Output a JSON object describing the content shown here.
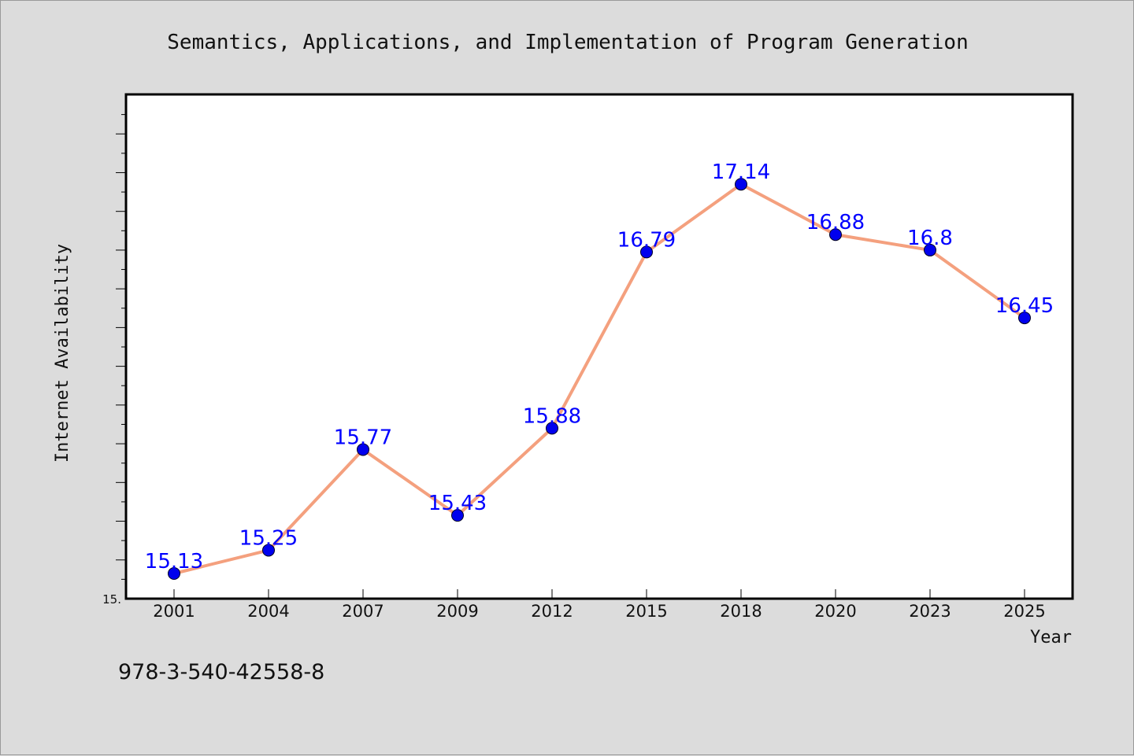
{
  "chart_data": {
    "type": "line",
    "title": "Semantics, Applications, and Implementation of Program Generation",
    "xlabel": "Year",
    "ylabel": "Internet Availability",
    "categories": [
      "2001",
      "2004",
      "2007",
      "2009",
      "2012",
      "2015",
      "2018",
      "2020",
      "2023",
      "2025"
    ],
    "series": [
      {
        "values": [
          15.13,
          15.25,
          15.77,
          15.43,
          15.88,
          16.79,
          17.14,
          16.88,
          16.8,
          16.45
        ],
        "labels": [
          "15.13",
          "15.25",
          "15.77",
          "15.43",
          "15.88",
          "16.79",
          "17.14",
          "16.88",
          "16.8",
          "16.45"
        ]
      }
    ],
    "ylim": [
      15.0,
      17.6
    ],
    "y_tick_labels": [
      "15."
    ],
    "grid": false,
    "line_color": "#f4a07e",
    "marker_color": "#0000ee",
    "label_color": "#0000ff",
    "plot_background": "#ffffff",
    "page_background": "#dcdcdc"
  },
  "footer": {
    "isbn": "978-3-540-42558-8"
  }
}
